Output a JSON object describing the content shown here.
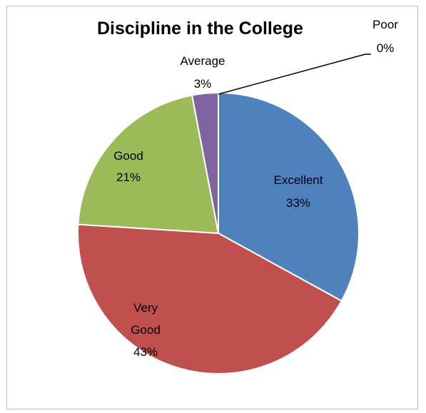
{
  "chart_data": {
    "type": "pie",
    "title": "Discipline in the College",
    "slices": [
      {
        "label": "Excellent",
        "value": 33,
        "percent_label": "33%",
        "color": "#4f81bd"
      },
      {
        "label": "Very Good",
        "value": 43,
        "percent_label": "43%",
        "color": "#c0504d"
      },
      {
        "label": "Good",
        "value": 21,
        "percent_label": "21%",
        "color": "#9bbb59"
      },
      {
        "label": "Average",
        "value": 3,
        "percent_label": "3%",
        "color": "#8064a2"
      },
      {
        "label": "Poor",
        "value": 0,
        "percent_label": "0%",
        "color": "#4bacc6"
      }
    ],
    "legend": "none",
    "data_labels": "category and percent"
  }
}
